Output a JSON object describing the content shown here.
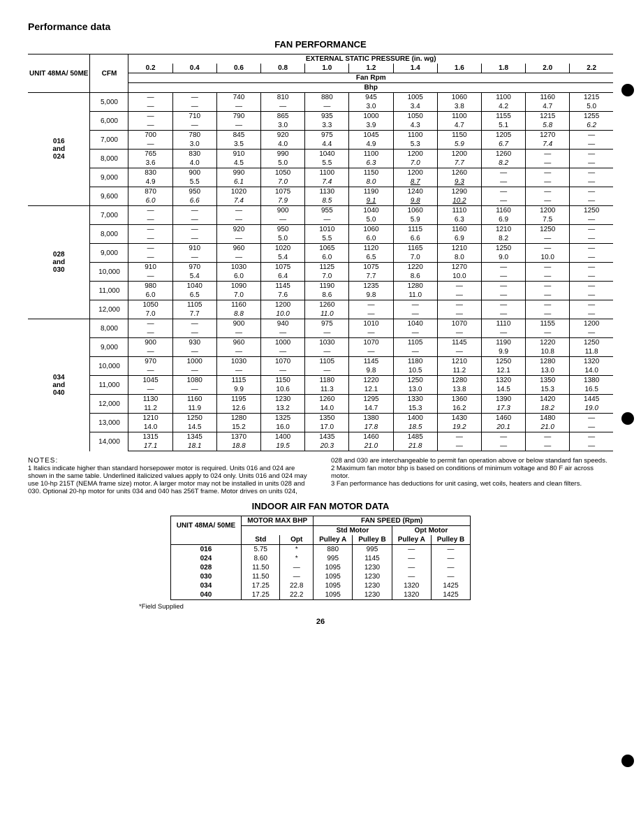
{
  "page": {
    "section_title": "Performance data",
    "table1_title": "FAN PERFORMANCE",
    "table2_title": "INDOOR AIR FAN MOTOR DATA",
    "page_number": "26",
    "footnote": "*Field Supplied"
  },
  "perf_headers": {
    "unit": "UNIT 48MA/ 50ME",
    "cfm": "CFM",
    "ext_label": "EXTERNAL STATIC PRESSURE (in. wg)",
    "row2": "Fan Rpm",
    "row3": "Bhp",
    "pressures": [
      "0.2",
      "0.4",
      "0.6",
      "0.8",
      "1.0",
      "1.2",
      "1.4",
      "1.6",
      "1.8",
      "2.0",
      "2.2"
    ]
  },
  "perf_groups": [
    {
      "unit_label": "016\nand\n024",
      "rows": [
        {
          "cfm": "5,000",
          "rpm": [
            "—",
            "—",
            "740",
            "810",
            "880",
            "945",
            "1005",
            "1060",
            "1100",
            "1160",
            "1215"
          ],
          "bhp": [
            "—",
            "—",
            "—",
            "—",
            "—",
            "3.0",
            "3.4",
            "3.8",
            "4.2",
            "4.7",
            "5.0"
          ]
        },
        {
          "cfm": "6,000",
          "rpm": [
            "—",
            "710",
            "790",
            "865",
            "935",
            "1000",
            "1050",
            "1100",
            "1155",
            "1215",
            "1255"
          ],
          "bhp": [
            "—",
            "—",
            "—",
            "3.0",
            "3.3",
            "3.9",
            "4.3",
            "4.7",
            "5.1",
            "5.8",
            "6.2"
          ],
          "style": {
            "9": "italic",
            "10": "italic"
          }
        },
        {
          "cfm": "7,000",
          "rpm": [
            "700",
            "780",
            "845",
            "920",
            "975",
            "1045",
            "1100",
            "1150",
            "1205",
            "1270",
            "—"
          ],
          "bhp": [
            "—",
            "3.0",
            "3.5",
            "4.0",
            "4.4",
            "4.9",
            "5.3",
            "5.9",
            "6.7",
            "7.4",
            "—"
          ],
          "style": {
            "7": "italic",
            "8": "italic",
            "9": "italic"
          }
        },
        {
          "cfm": "8,000",
          "rpm": [
            "765",
            "830",
            "910",
            "990",
            "1040",
            "1100",
            "1200",
            "1200",
            "1260",
            "—",
            "—"
          ],
          "bhp": [
            "3.6",
            "4.0",
            "4.5",
            "5.0",
            "5.5",
            "6.3",
            "7.0",
            "7.7",
            "8.2",
            "—",
            "—"
          ],
          "style": {
            "5": "italic",
            "6": "italic",
            "7": "italic",
            "8": "italic"
          }
        },
        {
          "cfm": "9,000",
          "rpm": [
            "830",
            "900",
            "990",
            "1050",
            "1100",
            "1150",
            "1200",
            "1260",
            "—",
            "—",
            "—"
          ],
          "bhp": [
            "4.9",
            "5.5",
            "6.1",
            "7.0",
            "7.4",
            "8.0",
            "8.7",
            "9.3",
            "—",
            "—",
            "—"
          ],
          "style": {
            "2": "italic",
            "3": "italic",
            "4": "italic",
            "5": "italic",
            "6": "underital",
            "7": "underital"
          }
        },
        {
          "cfm": "9,600",
          "rpm": [
            "870",
            "950",
            "1020",
            "1075",
            "1130",
            "1190",
            "1240",
            "1290",
            "—",
            "—",
            "—"
          ],
          "bhp": [
            "6.0",
            "6.6",
            "7.4",
            "7.9",
            "8.5",
            "9.1",
            "9.8",
            "10.2",
            "—",
            "—",
            "—"
          ],
          "style": {
            "0": "italic",
            "1": "italic",
            "2": "italic",
            "3": "italic",
            "4": "italic",
            "5": "underital",
            "6": "underital",
            "7": "underital"
          }
        }
      ]
    },
    {
      "unit_label": "028\nand\n030",
      "rows": [
        {
          "cfm": "7,000",
          "rpm": [
            "—",
            "—",
            "—",
            "900",
            "955",
            "1040",
            "1060",
            "1110",
            "1160",
            "1200",
            "1250"
          ],
          "bhp": [
            "—",
            "—",
            "—",
            "—",
            "—",
            "5.0",
            "5.9",
            "6.3",
            "6.9",
            "7.5",
            "—"
          ]
        },
        {
          "cfm": "8,000",
          "rpm": [
            "—",
            "—",
            "920",
            "950",
            "1010",
            "1060",
            "1115",
            "1160",
            "1210",
            "1250",
            "—"
          ],
          "bhp": [
            "—",
            "—",
            "—",
            "5.0",
            "5.5",
            "6.0",
            "6.6",
            "6.9",
            "8.2",
            "—",
            "—"
          ]
        },
        {
          "cfm": "9,000",
          "rpm": [
            "—",
            "910",
            "960",
            "1020",
            "1065",
            "1120",
            "1165",
            "1210",
            "1250",
            "—",
            "—"
          ],
          "bhp": [
            "—",
            "—",
            "—",
            "5.4",
            "6.0",
            "6.5",
            "7.0",
            "8.0",
            "9.0",
            "10.0",
            "—"
          ]
        },
        {
          "cfm": "10,000",
          "rpm": [
            "910",
            "970",
            "1030",
            "1075",
            "1125",
            "1075",
            "1220",
            "1270",
            "—",
            "—",
            "—"
          ],
          "bhp": [
            "—",
            "5.4",
            "6.0",
            "6.4",
            "7.0",
            "7.7",
            "8.6",
            "10.0",
            "—",
            "—",
            "—"
          ]
        },
        {
          "cfm": "11,000",
          "rpm": [
            "980",
            "1040",
            "1090",
            "1145",
            "1190",
            "1235",
            "1280",
            "—",
            "—",
            "—",
            "—"
          ],
          "bhp": [
            "6.0",
            "6.5",
            "7.0",
            "7.6",
            "8.6",
            "9.8",
            "11.0",
            "—",
            "—",
            "—",
            "—"
          ]
        },
        {
          "cfm": "12,000",
          "rpm": [
            "1050",
            "1105",
            "1160",
            "1200",
            "1260",
            "—",
            "—",
            "—",
            "—",
            "—",
            "—"
          ],
          "bhp": [
            "7.0",
            "7.7",
            "8.8",
            "10.0",
            "11.0",
            "—",
            "—",
            "—",
            "—",
            "—",
            "—"
          ],
          "style": {
            "2": "italic",
            "3": "italic",
            "4": "italic"
          }
        }
      ]
    },
    {
      "unit_label": "034\nand\n040",
      "rows": [
        {
          "cfm": "8,000",
          "rpm": [
            "—",
            "—",
            "900",
            "940",
            "975",
            "1010",
            "1040",
            "1070",
            "1110",
            "1155",
            "1200"
          ],
          "bhp": [
            "—",
            "—",
            "—",
            "—",
            "—",
            "—",
            "—",
            "—",
            "—",
            "—",
            "—"
          ]
        },
        {
          "cfm": "9,000",
          "rpm": [
            "900",
            "930",
            "960",
            "1000",
            "1030",
            "1070",
            "1105",
            "1145",
            "1190",
            "1220",
            "1250"
          ],
          "bhp": [
            "—",
            "—",
            "—",
            "—",
            "—",
            "—",
            "—",
            "—",
            "9.9",
            "10.8",
            "11.8"
          ]
        },
        {
          "cfm": "10,000",
          "rpm": [
            "970",
            "1000",
            "1030",
            "1070",
            "1105",
            "1145",
            "1180",
            "1210",
            "1250",
            "1280",
            "1320"
          ],
          "bhp": [
            "—",
            "—",
            "—",
            "—",
            "—",
            "9.8",
            "10.5",
            "11.2",
            "12.1",
            "13.0",
            "14.0"
          ]
        },
        {
          "cfm": "11,000",
          "rpm": [
            "1045",
            "1080",
            "1115",
            "1150",
            "1180",
            "1220",
            "1250",
            "1280",
            "1320",
            "1350",
            "1380"
          ],
          "bhp": [
            "—",
            "—",
            "9.9",
            "10.6",
            "11.3",
            "12.1",
            "13.0",
            "13.8",
            "14.5",
            "15.3",
            "16.5"
          ]
        },
        {
          "cfm": "12,000",
          "rpm": [
            "1130",
            "1160",
            "1195",
            "1230",
            "1260",
            "1295",
            "1330",
            "1360",
            "1390",
            "1420",
            "1445"
          ],
          "bhp": [
            "11.2",
            "11.9",
            "12.6",
            "13.2",
            "14.0",
            "14.7",
            "15.3",
            "16.2",
            "17.3",
            "18.2",
            "19.0"
          ],
          "style": {
            "8": "italic",
            "9": "italic",
            "10": "italic"
          }
        },
        {
          "cfm": "13,000",
          "rpm": [
            "1210",
            "1250",
            "1280",
            "1325",
            "1350",
            "1380",
            "1400",
            "1430",
            "1460",
            "1480",
            "—"
          ],
          "bhp": [
            "14.0",
            "14.5",
            "15.2",
            "16.0",
            "17.0",
            "17.8",
            "18.5",
            "19.2",
            "20.1",
            "21.0",
            "—"
          ],
          "style": {
            "5": "italic",
            "6": "italic",
            "7": "italic",
            "8": "italic",
            "9": "italic"
          }
        },
        {
          "cfm": "14,000",
          "rpm": [
            "1315",
            "1345",
            "1370",
            "1400",
            "1435",
            "1460",
            "1485",
            "—",
            "—",
            "—",
            "—"
          ],
          "bhp": [
            "17.1",
            "18.1",
            "18.8",
            "19.5",
            "20.3",
            "21.0",
            "21.8",
            "—",
            "—",
            "—",
            "—"
          ],
          "style": {
            "0": "italic",
            "1": "italic",
            "2": "italic",
            "3": "italic",
            "4": "italic",
            "5": "italic",
            "6": "italic"
          }
        }
      ]
    }
  ],
  "notes": {
    "label": "NOTES:",
    "left": "1  Italics indicate higher than standard horsepower motor is required. Units 016 and 024 are shown in the same table. Underlined italicized values apply to 024 only. Units 016 and 024 may use 10-hp 215T (NEMA frame size) motor. A larger motor may not be installed in units 028 and 030. Optional 20-hp motor for units 034 and 040 has 256T frame. Motor drives on units 024,",
    "right_top": "028 and 030 are interchangeable to permit fan operation above or below standard fan speeds.",
    "right2": "2  Maximum fan motor bhp is based on conditions of minimum voltage and 80 F air across motor.",
    "right3": "3  Fan performance has deductions for unit casing, wet coils, heaters and clean filters."
  },
  "motor_headers": {
    "unit": "UNIT 48MA/ 50ME",
    "motor": "MOTOR MAX BHP",
    "std": "Std",
    "opt": "Opt",
    "fanspeed": "FAN SPEED (Rpm)",
    "stdmotor": "Std Motor",
    "optmotor": "Opt Motor",
    "pa": "Pulley A",
    "pb": "Pulley B"
  },
  "motor_rows": [
    {
      "unit": "016",
      "std": "5.75",
      "opt": "*",
      "spa": "880",
      "spb": "995",
      "opa": "—",
      "opb": "—"
    },
    {
      "unit": "024",
      "std": "8.60",
      "opt": "*",
      "spa": "995",
      "spb": "1145",
      "opa": "—",
      "opb": "—"
    },
    {
      "unit": "028",
      "std": "11.50",
      "opt": "—",
      "spa": "1095",
      "spb": "1230",
      "opa": "—",
      "opb": "—"
    },
    {
      "unit": "030",
      "std": "11.50",
      "opt": "—",
      "spa": "1095",
      "spb": "1230",
      "opa": "—",
      "opb": "—"
    },
    {
      "unit": "034",
      "std": "17.25",
      "opt": "22.8",
      "spa": "1095",
      "spb": "1230",
      "opa": "1320",
      "opb": "1425"
    },
    {
      "unit": "040",
      "std": "17.25",
      "opt": "22.2",
      "spa": "1095",
      "spb": "1230",
      "opa": "1320",
      "opb": "1425"
    }
  ]
}
